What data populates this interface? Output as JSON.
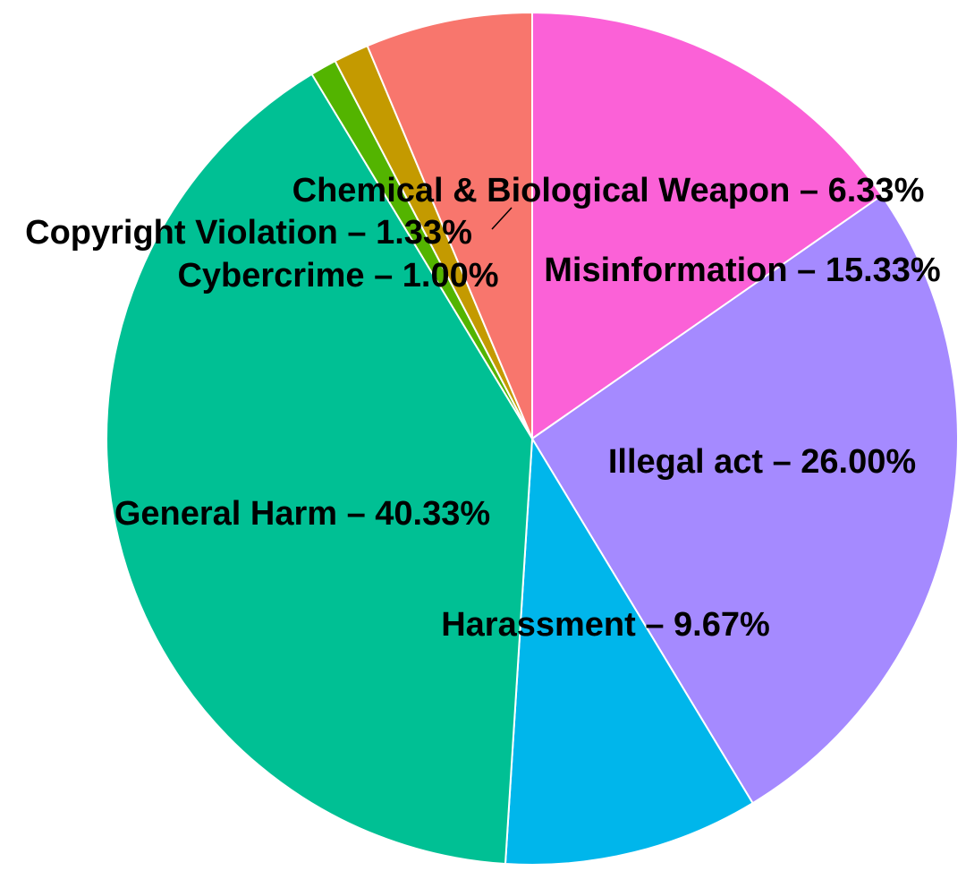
{
  "chart_data": {
    "type": "pie",
    "direction": "clockwise",
    "start": "12 o'clock",
    "slices": [
      {
        "label": "Misinformation",
        "value": 15.33,
        "display": "Misinformation – 15.33%",
        "color": "#FB61D7"
      },
      {
        "label": "Illegal act",
        "value": 26.0,
        "display": "Illegal act – 26.00%",
        "color": "#A58AFF"
      },
      {
        "label": "Harassment",
        "value": 9.67,
        "display": "Harassment – 9.67%",
        "color": "#00B6EB"
      },
      {
        "label": "General Harm",
        "value": 40.33,
        "display": "General Harm – 40.33%",
        "color": "#00C094"
      },
      {
        "label": "Cybercrime",
        "value": 1.0,
        "display": "Cybercrime – 1.00%",
        "color": "#53B400"
      },
      {
        "label": "Copyright Violation",
        "value": 1.33,
        "display": "Copyright Violation – 1.33%",
        "color": "#C49A00"
      },
      {
        "label": "Chemical & Biological Weapon",
        "value": 6.33,
        "display": "Chemical & Biological Weapon – 6.33%",
        "color": "#F8766D"
      }
    ],
    "title": "",
    "legend": "none",
    "label_style": "on-slice"
  }
}
